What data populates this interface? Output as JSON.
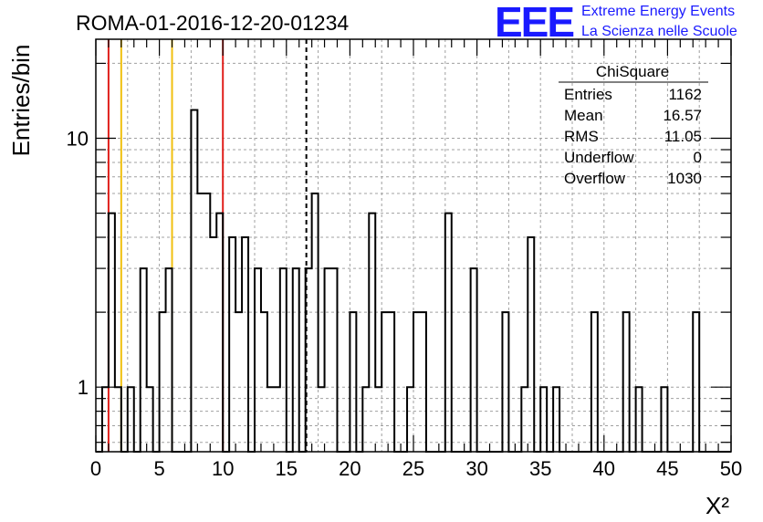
{
  "header": {
    "run_title": "ROMA-01-2016-12-20-01234",
    "logo_mark": "EEE",
    "logo_line1": "Extreme Energy Events",
    "logo_line2": "La Scienza nelle Scuole"
  },
  "stats_box": {
    "name": "ChiSquare",
    "rows": [
      {
        "label": "Entries",
        "value": "1162"
      },
      {
        "label": "Mean",
        "value": "16.57"
      },
      {
        "label": "RMS",
        "value": "11.05"
      },
      {
        "label": "Underflow",
        "value": "0"
      },
      {
        "label": "Overflow",
        "value": "1030"
      }
    ]
  },
  "chart_data": {
    "type": "histogram",
    "xlabel": "X²",
    "ylabel": "Entries/bin",
    "xlim": [
      0,
      50
    ],
    "ylim": [
      0.55,
      25
    ],
    "yscale": "log",
    "grid": true,
    "bin_width": 0.5,
    "x_ticks": [
      0,
      5,
      10,
      15,
      20,
      25,
      30,
      35,
      40,
      45,
      50
    ],
    "y_ticks": [
      1,
      10
    ],
    "y_tick_labels": [
      "1",
      "10"
    ],
    "bins": [
      {
        "x": 0.5,
        "y": 1
      },
      {
        "x": 1.0,
        "y": 5
      },
      {
        "x": 1.5,
        "y": 1
      },
      {
        "x": 2.5,
        "y": 1
      },
      {
        "x": 3.5,
        "y": 3
      },
      {
        "x": 4.0,
        "y": 1
      },
      {
        "x": 5.0,
        "y": 2
      },
      {
        "x": 5.5,
        "y": 3
      },
      {
        "x": 7.5,
        "y": 13
      },
      {
        "x": 8.0,
        "y": 6
      },
      {
        "x": 8.5,
        "y": 6
      },
      {
        "x": 9.0,
        "y": 4
      },
      {
        "x": 9.5,
        "y": 5
      },
      {
        "x": 10.5,
        "y": 4
      },
      {
        "x": 11.0,
        "y": 2
      },
      {
        "x": 11.5,
        "y": 4
      },
      {
        "x": 12.5,
        "y": 3
      },
      {
        "x": 13.0,
        "y": 2
      },
      {
        "x": 13.5,
        "y": 1
      },
      {
        "x": 14.0,
        "y": 1
      },
      {
        "x": 14.5,
        "y": 3
      },
      {
        "x": 15.5,
        "y": 3
      },
      {
        "x": 16.5,
        "y": 3
      },
      {
        "x": 17.0,
        "y": 6
      },
      {
        "x": 17.5,
        "y": 1
      },
      {
        "x": 18.0,
        "y": 3
      },
      {
        "x": 18.5,
        "y": 3
      },
      {
        "x": 20.0,
        "y": 2
      },
      {
        "x": 21.0,
        "y": 1
      },
      {
        "x": 21.5,
        "y": 5
      },
      {
        "x": 22.0,
        "y": 1
      },
      {
        "x": 22.5,
        "y": 2
      },
      {
        "x": 23.0,
        "y": 2
      },
      {
        "x": 24.5,
        "y": 1
      },
      {
        "x": 25.0,
        "y": 2
      },
      {
        "x": 25.5,
        "y": 2
      },
      {
        "x": 27.5,
        "y": 5
      },
      {
        "x": 29.5,
        "y": 3
      },
      {
        "x": 32.0,
        "y": 2
      },
      {
        "x": 33.5,
        "y": 1
      },
      {
        "x": 34.0,
        "y": 4
      },
      {
        "x": 35.0,
        "y": 1
      },
      {
        "x": 36.0,
        "y": 1
      },
      {
        "x": 39.0,
        "y": 2
      },
      {
        "x": 41.5,
        "y": 2
      },
      {
        "x": 42.5,
        "y": 1
      },
      {
        "x": 44.5,
        "y": 1
      },
      {
        "x": 47.0,
        "y": 2
      }
    ],
    "reference_lines": [
      {
        "x": 1,
        "color": "#e0201c",
        "style": "solid"
      },
      {
        "x": 2,
        "color": "#f0c010",
        "style": "solid"
      },
      {
        "x": 6,
        "color": "#f0c010",
        "style": "solid"
      },
      {
        "x": 10,
        "color": "#e0201c",
        "style": "solid"
      },
      {
        "x": 16.57,
        "color": "#000000",
        "style": "dashed"
      }
    ]
  }
}
